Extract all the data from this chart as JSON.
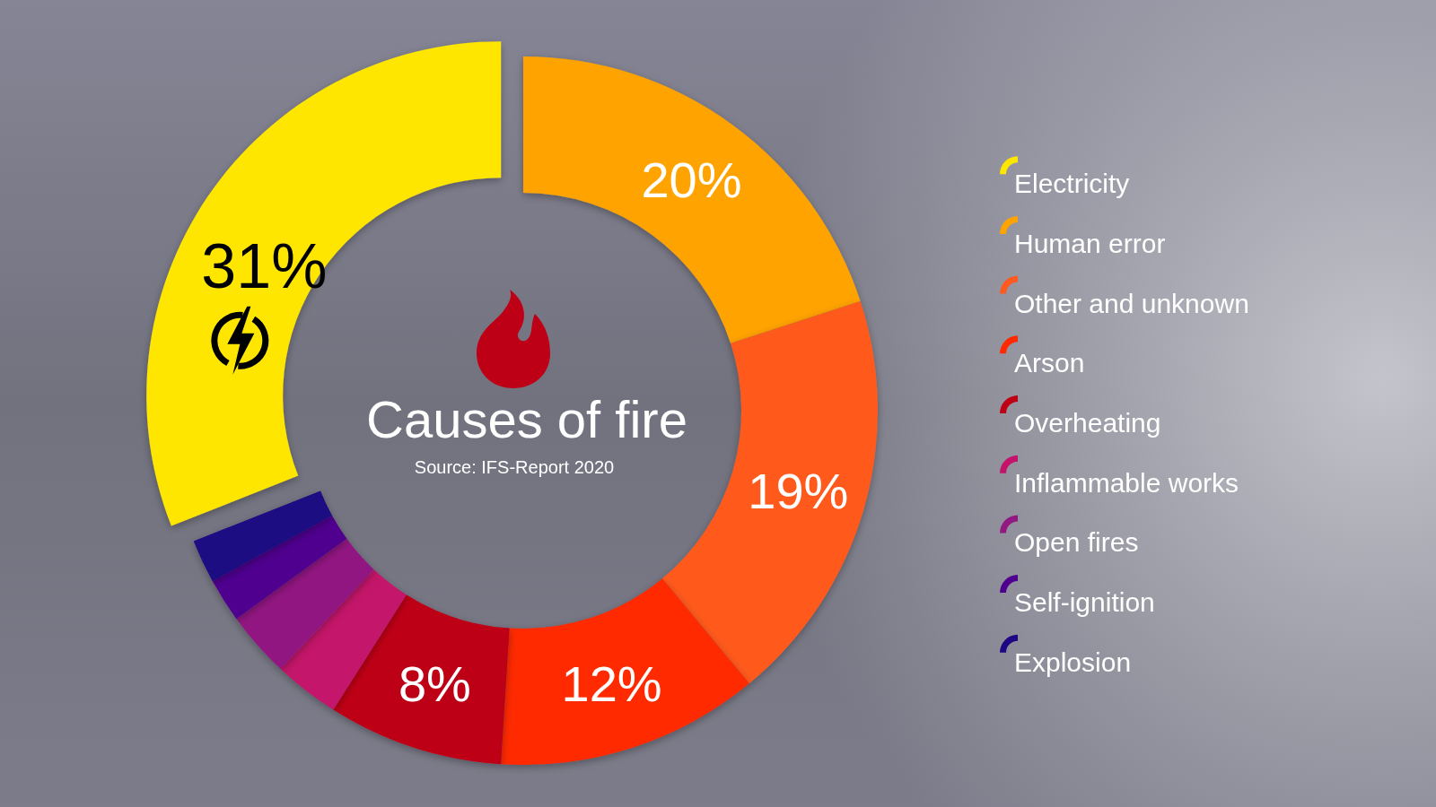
{
  "chart_data": {
    "type": "donut",
    "title": "Causes of fire",
    "annotations": [
      "Source: IFS-Report 2020"
    ],
    "categories": [
      "Electricity",
      "Human error",
      "Other and unknown",
      "Arson",
      "Overheating",
      "Inflammable works",
      "Open fires",
      "Self-ignition",
      "Explosion"
    ],
    "values": [
      31,
      20,
      19,
      12,
      8,
      3,
      3,
      2,
      2
    ],
    "colors": [
      "#ffe600",
      "#ffa300",
      "#ff5a1f",
      "#ff2a00",
      "#be0017",
      "#c4136a",
      "#921982",
      "#50008f",
      "#1f0783"
    ],
    "value_labels": [
      "31%",
      "20%",
      "19%",
      "12%",
      "8%",
      null,
      null,
      null,
      null
    ],
    "legend": "right"
  }
}
